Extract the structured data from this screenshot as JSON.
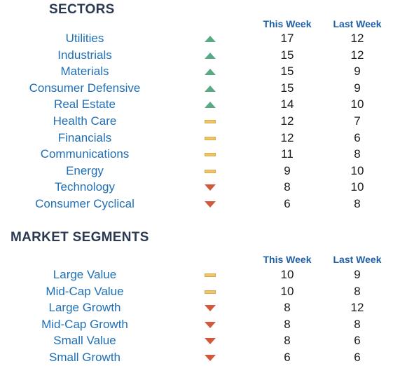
{
  "sectors": {
    "title": "SECTORS",
    "col_this": "This Week",
    "col_last": "Last Week",
    "rows": [
      {
        "label": "Utilities",
        "trend": "up",
        "this_week": "17",
        "last_week": "12"
      },
      {
        "label": "Industrials",
        "trend": "up",
        "this_week": "15",
        "last_week": "12"
      },
      {
        "label": "Materials",
        "trend": "up",
        "this_week": "15",
        "last_week": "9"
      },
      {
        "label": "Consumer Defensive",
        "trend": "up",
        "this_week": "15",
        "last_week": "9"
      },
      {
        "label": "Real Estate",
        "trend": "up",
        "this_week": "14",
        "last_week": "10"
      },
      {
        "label": "Health Care",
        "trend": "flat",
        "this_week": "12",
        "last_week": "7"
      },
      {
        "label": "Financials",
        "trend": "flat",
        "this_week": "12",
        "last_week": "6"
      },
      {
        "label": "Communications",
        "trend": "flat",
        "this_week": "11",
        "last_week": "8"
      },
      {
        "label": "Energy",
        "trend": "flat",
        "this_week": "9",
        "last_week": "10"
      },
      {
        "label": "Technology",
        "trend": "down",
        "this_week": "8",
        "last_week": "10"
      },
      {
        "label": "Consumer Cyclical",
        "trend": "down",
        "this_week": "6",
        "last_week": "8"
      }
    ]
  },
  "segments": {
    "title": "MARKET SEGMENTS",
    "col_this": "This Week",
    "col_last": "Last Week",
    "rows": [
      {
        "label": "Large Value",
        "trend": "flat",
        "this_week": "10",
        "last_week": "9"
      },
      {
        "label": "Mid-Cap Value",
        "trend": "flat",
        "this_week": "10",
        "last_week": "8"
      },
      {
        "label": "Large Growth",
        "trend": "down",
        "this_week": "8",
        "last_week": "12"
      },
      {
        "label": "Mid-Cap Growth",
        "trend": "down",
        "this_week": "8",
        "last_week": "8"
      },
      {
        "label": "Small Value",
        "trend": "down",
        "this_week": "8",
        "last_week": "6"
      },
      {
        "label": "Small Growth",
        "trend": "down",
        "this_week": "6",
        "last_week": "6"
      }
    ]
  },
  "colors": {
    "up": "#5aa985",
    "flat": "#f0c46b",
    "down": "#d4593c",
    "label": "#1f6fb5",
    "header": "#1f5fa8"
  }
}
